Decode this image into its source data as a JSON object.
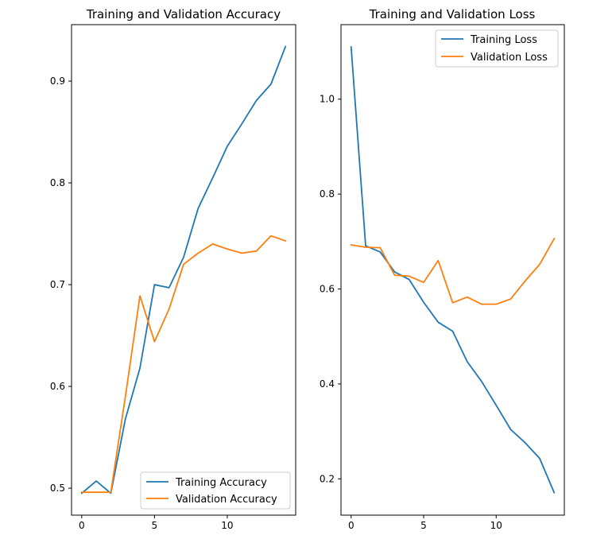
{
  "chart_data": [
    {
      "type": "line",
      "title": "Training and Validation Accuracy",
      "xlabel": "",
      "ylabel": "",
      "xlim": [
        -0.7,
        14.7
      ],
      "ylim": [
        0.4735,
        0.9555
      ],
      "xticks": [
        0,
        5,
        10
      ],
      "yticks": [
        0.5,
        0.6,
        0.7,
        0.8,
        0.9
      ],
      "ytick_labels": [
        "0.5",
        "0.6",
        "0.7",
        "0.8",
        "0.9"
      ],
      "legend": "lower-right",
      "grid": false,
      "x": [
        0,
        1,
        2,
        3,
        4,
        5,
        6,
        7,
        8,
        9,
        10,
        11,
        12,
        13,
        14
      ],
      "series": [
        {
          "name": "Training Accuracy",
          "color": "#1f77b4",
          "values": [
            0.495,
            0.507,
            0.495,
            0.568,
            0.618,
            0.7,
            0.697,
            0.727,
            0.775,
            0.805,
            0.836,
            0.858,
            0.881,
            0.897,
            0.934
          ]
        },
        {
          "name": "Validation Accuracy",
          "color": "#ff7f0e",
          "values": [
            0.496,
            0.496,
            0.496,
            0.59,
            0.689,
            0.644,
            0.676,
            0.72,
            0.731,
            0.74,
            0.735,
            0.731,
            0.733,
            0.748,
            0.743
          ]
        }
      ]
    },
    {
      "type": "line",
      "title": "Training and Validation Loss",
      "xlabel": "",
      "ylabel": "",
      "xlim": [
        -0.7,
        14.7
      ],
      "ylim": [
        0.1235,
        1.157
      ],
      "xticks": [
        0,
        5,
        10
      ],
      "yticks": [
        0.2,
        0.4,
        0.6,
        0.8,
        1.0
      ],
      "ytick_labels": [
        "0.2",
        "0.4",
        "0.6",
        "0.8",
        "1.0"
      ],
      "legend": "top-right",
      "grid": false,
      "x": [
        0,
        1,
        2,
        3,
        4,
        5,
        6,
        7,
        8,
        9,
        10,
        11,
        12,
        13,
        14
      ],
      "series": [
        {
          "name": "Training Loss",
          "color": "#1f77b4",
          "values": [
            1.11,
            0.691,
            0.678,
            0.636,
            0.62,
            0.572,
            0.53,
            0.511,
            0.447,
            0.405,
            0.355,
            0.304,
            0.276,
            0.243,
            0.171
          ]
        },
        {
          "name": "Validation Loss",
          "color": "#ff7f0e",
          "values": [
            0.693,
            0.688,
            0.687,
            0.629,
            0.627,
            0.614,
            0.66,
            0.571,
            0.583,
            0.568,
            0.568,
            0.579,
            0.617,
            0.652,
            0.706
          ]
        }
      ]
    }
  ]
}
